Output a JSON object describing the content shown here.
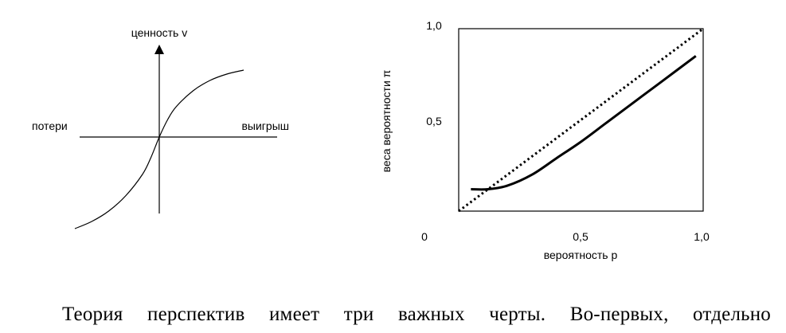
{
  "chart_data": [
    {
      "type": "line",
      "title": "",
      "ylabel": "ценность v",
      "xlabel_left": "потери",
      "xlabel_right": "выигрыш",
      "grid": false,
      "legend": "none",
      "series": [
        {
          "name": "",
          "x": [
            -1.0,
            -0.8,
            -0.6,
            -0.4,
            -0.2,
            -0.1,
            0.0,
            0.1,
            0.2,
            0.4,
            0.6,
            0.8,
            1.0
          ],
          "values": [
            -1.15,
            -1.06,
            -0.93,
            -0.74,
            -0.47,
            -0.26,
            0.0,
            0.22,
            0.38,
            0.58,
            0.71,
            0.79,
            0.84
          ]
        }
      ],
      "xlim": [
        -1.0,
        1.4
      ],
      "ylim": [
        -1.2,
        1.1
      ]
    },
    {
      "type": "line",
      "title": "",
      "xlabel": "вероятность p",
      "ylabel": "веса вероятности π",
      "xlim": [
        0,
        1.0
      ],
      "ylim": [
        0,
        1.0
      ],
      "xticks": [
        "0",
        "0,5",
        "1,0"
      ],
      "yticks": [
        "0,5",
        "1,0"
      ],
      "grid": false,
      "legend": "none",
      "series": [
        {
          "name": "",
          "style": "dotted",
          "x": [
            0.0,
            1.0
          ],
          "values": [
            0.0,
            1.0
          ]
        },
        {
          "name": "",
          "style": "solid",
          "x": [
            0.05,
            0.12,
            0.2,
            0.3,
            0.4,
            0.5,
            0.6,
            0.7,
            0.8,
            0.9,
            0.97
          ],
          "values": [
            0.12,
            0.12,
            0.14,
            0.2,
            0.29,
            0.38,
            0.48,
            0.58,
            0.68,
            0.78,
            0.85
          ]
        }
      ]
    }
  ],
  "text": {
    "paragraph": "Теория перспектив имеет три важных черты. Во-первых, отдельно"
  }
}
